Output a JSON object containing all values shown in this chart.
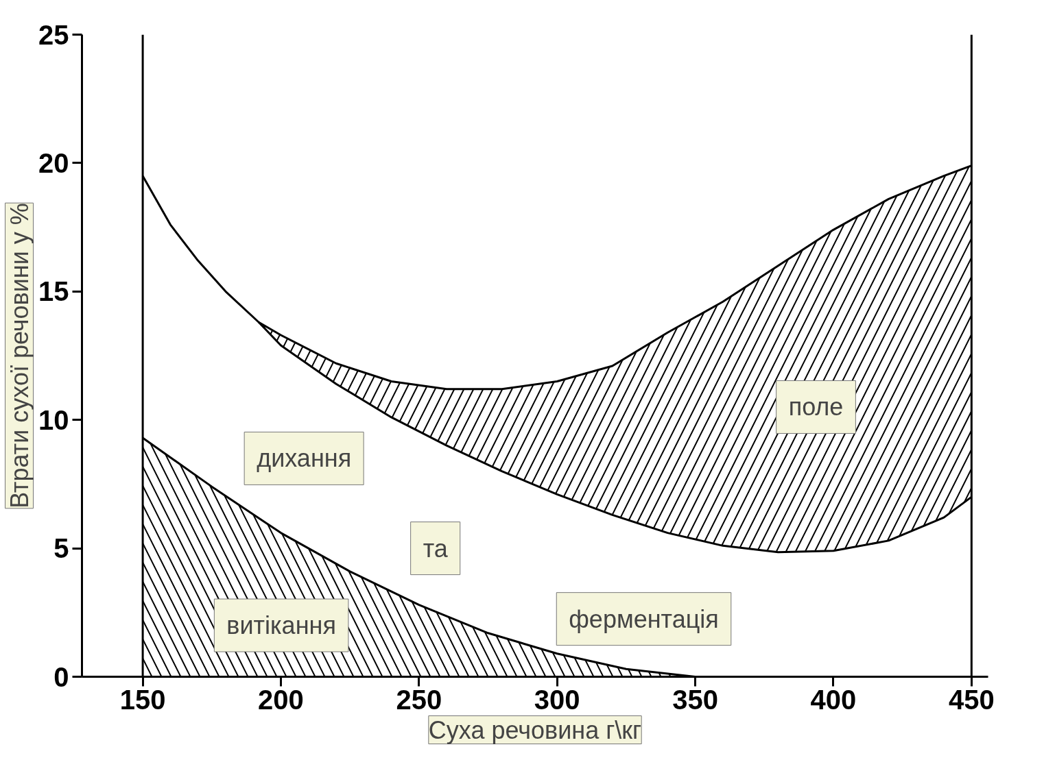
{
  "chart_data": {
    "type": "line",
    "xlabel": "Суха речовина г\\кг",
    "ylabel": "Втрати сухої речовини у %",
    "xlim": [
      128,
      456
    ],
    "ylim": [
      0,
      25
    ],
    "xticks": [
      150,
      200,
      250,
      300,
      350,
      400,
      450
    ],
    "yticks": [
      0,
      5,
      10,
      15,
      20,
      25
    ],
    "grid": false,
    "marker": "none",
    "line_style": "solid",
    "series": [
      {
        "color": "#000000",
        "x": [
          150,
          160,
          170,
          180,
          192,
          200,
          220,
          240,
          260,
          280,
          300,
          320,
          340,
          350,
          360,
          380,
          400,
          420,
          440,
          450
        ],
        "values": [
          19.5,
          17.6,
          16.2,
          15.0,
          13.8,
          13.3,
          12.2,
          11.5,
          11.2,
          11.2,
          11.5,
          12.1,
          13.4,
          14.0,
          14.6,
          16.0,
          17.4,
          18.6,
          19.5,
          19.9
        ]
      },
      {
        "color": "#000000",
        "x": [
          192,
          200,
          220,
          240,
          260,
          280,
          300,
          320,
          340,
          360,
          380,
          400,
          420,
          440,
          450
        ],
        "values": [
          13.8,
          12.9,
          11.4,
          10.1,
          9.0,
          8.0,
          7.1,
          6.3,
          5.6,
          5.1,
          4.85,
          4.9,
          5.3,
          6.2,
          7.0
        ],
        "lower": [
          13.8,
          12.9,
          11.4,
          10.1,
          9.0,
          8.0,
          7.1,
          6.3,
          5.6,
          5.1,
          4.85,
          4.9,
          5.3,
          6.2,
          7.0
        ],
        "upper": [
          13.8,
          13.3,
          12.2,
          11.5,
          11.2,
          11.2,
          11.5,
          12.1,
          13.4,
          14.6,
          16.0,
          17.4,
          18.6,
          19.5,
          19.9
        ]
      },
      {
        "type": "area",
        "color": "#000000",
        "x": [
          150,
          175,
          200,
          225,
          250,
          275,
          300,
          325,
          350
        ],
        "values": [
          9.3,
          7.4,
          5.6,
          4.1,
          2.8,
          1.7,
          0.9,
          0.3,
          0.0
        ]
      }
    ],
    "ref_lines": [
      {
        "axis": "x",
        "value": 150,
        "label": null
      },
      {
        "axis": "x",
        "value": 450,
        "label": null
      }
    ],
    "annotations": [
      "дихання",
      "та",
      "ферментація",
      "поле",
      "витікання"
    ]
  }
}
